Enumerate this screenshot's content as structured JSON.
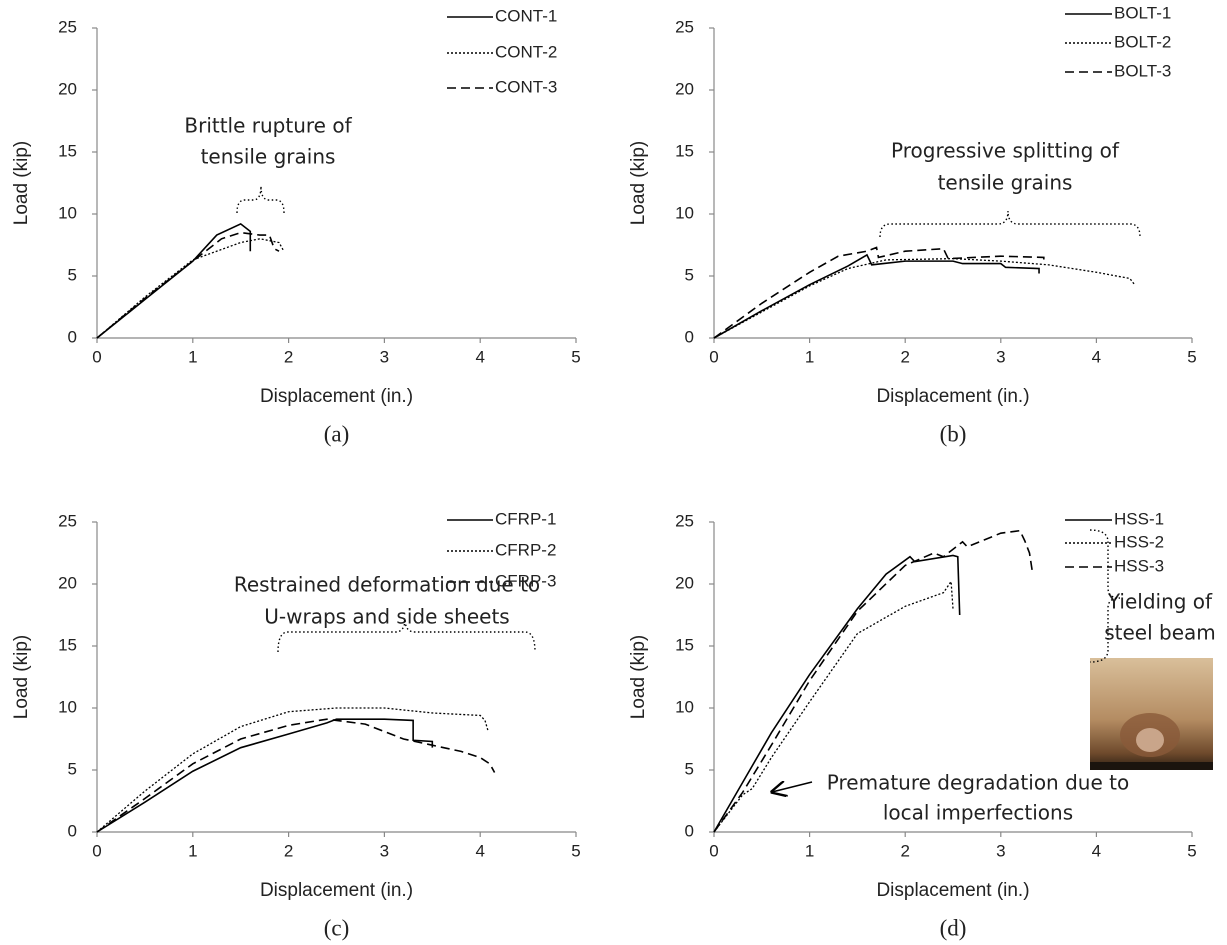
{
  "chart_data": [
    {
      "type": "line",
      "caption": "(a)",
      "xlabel": "Displacement (in.)",
      "ylabel": "Load (kip)",
      "xlim": [
        0,
        5
      ],
      "xticks": [
        0,
        1,
        2,
        3,
        4,
        5
      ],
      "ylim": [
        0,
        25
      ],
      "yticks": [
        0,
        5,
        10,
        15,
        20,
        25
      ],
      "grid": false,
      "legend": "upper right",
      "annotations": [
        [
          "Brittle rupture of",
          "tensile grains"
        ]
      ],
      "series": [
        {
          "name": "CONT-1",
          "color": "#000000",
          "dash": "solid",
          "x": [
            0,
            0.5,
            1,
            1.25,
            1.5,
            1.6,
            1.6
          ],
          "values": [
            0,
            3.1,
            6.2,
            8.3,
            9.2,
            8.6,
            7.0
          ]
        },
        {
          "name": "CONT-2",
          "color": "#000000",
          "dash": "dotted",
          "x": [
            0,
            0.5,
            1,
            1.5,
            1.7,
            1.9,
            1.95
          ],
          "values": [
            0,
            3.3,
            6.3,
            7.7,
            8.0,
            7.7,
            7.0
          ]
        },
        {
          "name": "CONT-3",
          "color": "#000000",
          "dash": "dashed",
          "x": [
            0,
            0.5,
            1,
            1.3,
            1.5,
            1.7,
            1.8,
            1.85,
            1.9
          ],
          "values": [
            0,
            3.2,
            6.2,
            8.0,
            8.5,
            8.3,
            8.3,
            7.2,
            7.0
          ]
        }
      ]
    },
    {
      "type": "line",
      "caption": "(b)",
      "xlabel": "Displacement (in.)",
      "ylabel": "Load (kip)",
      "xlim": [
        0,
        5
      ],
      "xticks": [
        0,
        1,
        2,
        3,
        4,
        5
      ],
      "ylim": [
        0,
        25
      ],
      "yticks": [
        0,
        5,
        10,
        15,
        20,
        25
      ],
      "grid": false,
      "legend": "upper right",
      "annotations": [
        [
          "Progressive splitting of",
          "tensile grains"
        ]
      ],
      "series": [
        {
          "name": "BOLT-1",
          "color": "#000000",
          "dash": "solid",
          "x": [
            0,
            0.5,
            1,
            1.4,
            1.6,
            1.65,
            2,
            2.5,
            2.6,
            3,
            3.05,
            3.4,
            3.4
          ],
          "values": [
            0,
            2.2,
            4.3,
            5.8,
            6.7,
            5.9,
            6.2,
            6.2,
            6.0,
            6.0,
            5.7,
            5.6,
            5.2
          ]
        },
        {
          "name": "BOLT-2",
          "color": "#000000",
          "dash": "dotted",
          "x": [
            0,
            0.5,
            1,
            1.4,
            1.8,
            2.5,
            3,
            3.5,
            4,
            4.35,
            4.4
          ],
          "values": [
            0,
            2.1,
            4.2,
            5.6,
            6.3,
            6.4,
            6.2,
            5.9,
            5.3,
            4.8,
            4.3
          ]
        },
        {
          "name": "BOLT-3",
          "color": "#000000",
          "dash": "dashed",
          "x": [
            0,
            0.5,
            1,
            1.3,
            1.6,
            1.7,
            1.72,
            2,
            2.4,
            2.45,
            3,
            3.45,
            3.45
          ],
          "values": [
            0,
            2.8,
            5.3,
            6.6,
            7.0,
            7.3,
            6.5,
            7.0,
            7.2,
            6.4,
            6.6,
            6.5,
            6.0
          ]
        }
      ]
    },
    {
      "type": "line",
      "caption": "(c)",
      "xlabel": "Displacement (in.)",
      "ylabel": "Load (kip)",
      "xlim": [
        0,
        5
      ],
      "xticks": [
        0,
        1,
        2,
        3,
        4,
        5
      ],
      "ylim": [
        0,
        25
      ],
      "yticks": [
        0,
        5,
        10,
        15,
        20,
        25
      ],
      "grid": false,
      "legend": "upper right",
      "annotations": [
        [
          "Restrained deformation due to",
          "U-wraps and side sheets"
        ]
      ],
      "series": [
        {
          "name": "CFRP-1",
          "color": "#000000",
          "dash": "solid",
          "x": [
            0,
            0.5,
            1,
            1.5,
            2,
            2.4,
            2.5,
            3,
            3.3,
            3.3,
            3.5,
            3.5
          ],
          "values": [
            0,
            2.4,
            4.9,
            6.8,
            7.9,
            8.8,
            9.1,
            9.1,
            9.0,
            7.4,
            7.3,
            6.8
          ]
        },
        {
          "name": "CFRP-2",
          "color": "#000000",
          "dash": "dotted",
          "x": [
            0,
            0.5,
            1,
            1.5,
            2,
            2.5,
            3,
            3.5,
            4,
            4.05,
            4.08
          ],
          "values": [
            0,
            3.3,
            6.3,
            8.5,
            9.7,
            10.0,
            10.0,
            9.6,
            9.4,
            9.0,
            8.2
          ]
        },
        {
          "name": "CFRP-3",
          "color": "#000000",
          "dash": "dashed",
          "x": [
            0,
            0.5,
            1,
            1.5,
            2,
            2.4,
            2.8,
            3.2,
            3.5,
            3.8,
            4,
            4.1,
            4.15
          ],
          "values": [
            0,
            2.7,
            5.5,
            7.5,
            8.6,
            9.1,
            8.7,
            7.5,
            7.0,
            6.5,
            6.0,
            5.5,
            4.8
          ]
        }
      ]
    },
    {
      "type": "line",
      "caption": "(d)",
      "xlabel": "Displacement (in.)",
      "ylabel": "Load (kip)",
      "xlim": [
        0,
        5
      ],
      "xticks": [
        0,
        1,
        2,
        3,
        4,
        5
      ],
      "ylim": [
        0,
        25
      ],
      "yticks": [
        0,
        5,
        10,
        15,
        20,
        25
      ],
      "grid": false,
      "legend": "upper right",
      "annotations": [
        [
          "Premature degradation due to",
          "local imperfections"
        ],
        [
          "Yielding of",
          "steel beam"
        ]
      ],
      "series": [
        {
          "name": "HSS-1",
          "color": "#000000",
          "dash": "solid",
          "x": [
            0,
            0.3,
            0.6,
            1,
            1.5,
            1.8,
            2.05,
            2.1,
            2.5,
            2.55,
            2.57
          ],
          "values": [
            0,
            4.0,
            8.0,
            12.7,
            18.0,
            20.8,
            22.2,
            21.8,
            22.3,
            22.2,
            17.5
          ]
        },
        {
          "name": "HSS-2",
          "color": "#000000",
          "dash": "dotted",
          "x": [
            0,
            0.3,
            0.4,
            0.6,
            1,
            1.5,
            2,
            2.4,
            2.48,
            2.5
          ],
          "values": [
            0,
            3.0,
            3.5,
            6.0,
            10.5,
            16.0,
            18.2,
            19.3,
            20.2,
            18.0
          ]
        },
        {
          "name": "HSS-3",
          "color": "#000000",
          "dash": "dashed",
          "x": [
            0,
            0.3,
            0.6,
            1,
            1.5,
            2,
            2.3,
            2.4,
            2.6,
            2.65,
            3,
            3.2,
            3.25,
            3.3,
            3.33
          ],
          "values": [
            0,
            3.2,
            7.0,
            12.2,
            17.8,
            21.5,
            22.5,
            22.2,
            23.4,
            23.0,
            24.1,
            24.3,
            23.5,
            22.5,
            21.0
          ]
        }
      ]
    }
  ]
}
